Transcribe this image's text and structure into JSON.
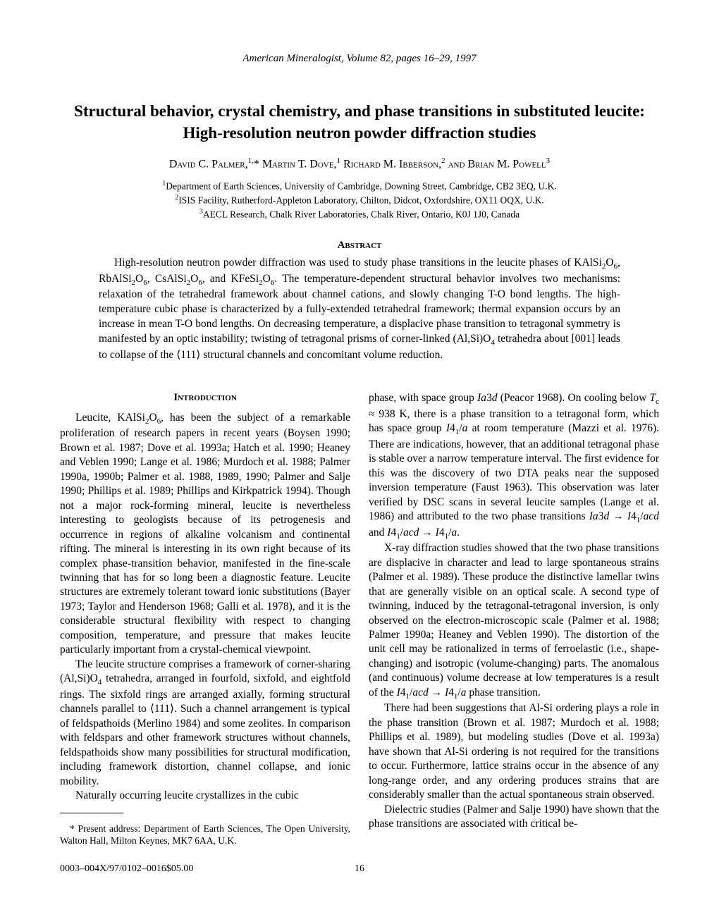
{
  "journal_header": "American Mineralogist, Volume 82, pages 16–29, 1997",
  "title_line1": "Structural behavior, crystal chemistry, and phase transitions in substituted leucite:",
  "title_line2": "High-resolution neutron powder diffraction studies",
  "authors_html": "<span class='name'>David C. Palmer,</span><span class='sup'>1,</span>* <span class='name'>Martin T. Dove,</span><span class='sup'>1</span> <span class='name'>Richard M. Ibberson,</span><span class='sup'>2</span> <span class='name'>and Brian M. Powell</span><span class='sup'>3</span>",
  "affil1": "<span class='sup'>1</span>Department of Earth Sciences, University of Cambridge, Downing Street, Cambridge, CB2 3EQ, U.K.",
  "affil2": "<span class='sup'>2</span>ISIS Facility, Rutherford-Appleton Laboratory, Chilton, Didcot, Oxfordshire, OX11 OQX, U.K.",
  "affil3": "<span class='sup'>3</span>AECL Research, Chalk River Laboratories, Chalk River, Ontario, K0J 1J0, Canada",
  "abstract_heading": "Abstract",
  "abstract_body": "<span class='indent'></span>High-resolution neutron powder diffraction was used to study phase transitions in the leucite phases of KAlSi<sub>2</sub>O<sub>6</sub>, RbAlSi<sub>2</sub>O<sub>6</sub>, CsAlSi<sub>2</sub>O<sub>6</sub>, and KFeSi<sub>2</sub>O<sub>6</sub>. The temperature-dependent structural behavior involves two mechanisms: relaxation of the tetrahedral framework about channel cations, and slowly changing T-O bond lengths. The high-temperature cubic phase is characterized by a fully-extended tetrahedral framework; thermal expansion occurs by an increase in mean T-O bond lengths. On decreasing temperature, a displacive phase transition to tetragonal symmetry is manifested by an optic instability; twisting of tetragonal prisms of corner-linked (Al,Si)O<sub>4</sub> tetrahedra about [001] leads to collapse of the ⟨111⟩ structural channels and concomitant volume reduction.",
  "intro_heading": "Introduction",
  "left_p1": "Leucite, KAlSi<sub>2</sub>O<sub>6</sub>, has been the subject of a remarkable proliferation of research papers in recent years (Boysen 1990; Brown et al. 1987; Dove et al. 1993a; Hatch et al. 1990; Heaney and Veblen 1990; Lange et al. 1986; Murdoch et al. 1988; Palmer 1990a, 1990b; Palmer et al. 1988, 1989, 1990; Palmer and Salje 1990; Phillips et al. 1989; Phillips and Kirkpatrick 1994). Though not a major rock-forming mineral, leucite is nevertheless interesting to geologists because of its petrogenesis and occurrence in regions of alkaline volcanism and continental rifting. The mineral is interesting in its own right because of its complex phase-transition behavior, manifested in the fine-scale twinning that has for so long been a diagnostic feature. Leucite structures are extremely tolerant toward ionic substitutions (Bayer 1973; Taylor and Henderson 1968; Galli et al. 1978), and it is the considerable structural flexibility with respect to changing composition, temperature, and pressure that makes leucite particularly important from a crystal-chemical viewpoint.",
  "left_p2": "The leucite structure comprises a framework of corner-sharing (Al,Si)O<sub>4</sub> tetrahedra, arranged in fourfold, sixfold, and eightfold rings. The sixfold rings are arranged axially, forming structural channels parallel to ⟨111⟩. Such a channel arrangement is typical of feldspathoids (Merlino 1984) and some zeolites. In comparison with feldspars and other framework structures without channels, feldspathoids show many possibilities for structural modification, including framework distortion, channel collapse, and ionic mobility.",
  "left_p3": "Naturally occurring leucite crystallizes in the cubic",
  "footnote": "* Present address: Department of Earth Sciences, The Open University, Walton Hall, Milton Keynes, MK7 6AA, U.K.",
  "right_p1": "phase, with space group <i>Ia</i>3<i>d</i> (Peacor 1968). On cooling below <i>T</i><sub>c</sub> ≈ 938 K, there is a phase transition to a tetragonal form, which has space group <i>I</i>4<sub>1</sub>/<i>a</i> at room temperature (Mazzi et al. 1976). There are indications, however, that an additional tetragonal phase is stable over a narrow temperature interval. The first evidence for this was the discovery of two DTA peaks near the supposed inversion temperature (Faust 1963). This observation was later verified by DSC scans in several leucite samples (Lange et al. 1986) and attributed to the two phase transitions <i>Ia</i>3<i>d</i> → <i>I</i>4<sub>1</sub>/<i>acd</i> and <i>I</i>4<sub>1</sub>/<i>acd</i> → <i>I</i>4<sub>1</sub>/<i>a</i>.",
  "right_p2": "X-ray diffraction studies showed that the two phase transitions are displacive in character and lead to large spontaneous strains (Palmer et al. 1989). These produce the distinctive lamellar twins that are generally visible on an optical scale. A second type of twinning, induced by the tetragonal-tetragonal inversion, is only observed on the electron-microscopic scale (Palmer et al. 1988; Palmer 1990a; Heaney and Veblen 1990). The distortion of the unit cell may be rationalized in terms of ferroelastic (i.e., shape-changing) and isotropic (volume-changing) parts. The anomalous (and continuous) volume decrease at low temperatures is a result of the <i>I</i>4<sub>1</sub>/<i>acd</i> → <i>I</i>4<sub>1</sub>/<i>a</i> phase transition.",
  "right_p3": "There had been suggestions that Al-Si ordering plays a role in the phase transition (Brown et al. 1987; Murdoch et al. 1988; Phillips et al. 1989), but modeling studies (Dove et al. 1993a) have shown that Al-Si ordering is not required for the transitions to occur. Furthermore, lattice strains occur in the absence of any long-range order, and any ordering produces strains that are considerably smaller than the actual spontaneous strain observed.",
  "right_p4": "Dielectric studies (Palmer and Salje 1990) have shown that the phase transitions are associated with critical be-",
  "footer_left": "0003–004X/97/0102–0016$05.00",
  "footer_page": "16"
}
